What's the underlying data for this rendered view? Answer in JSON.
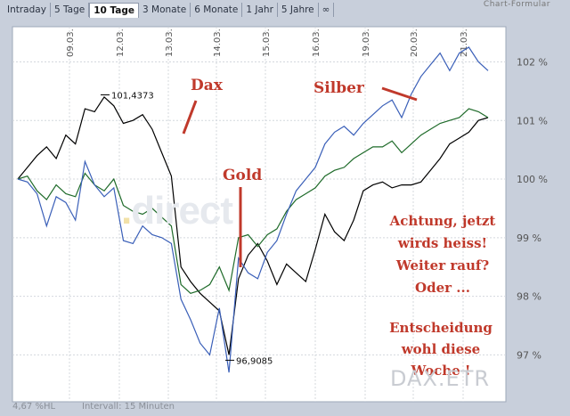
{
  "tabs": [
    {
      "label": "Intraday",
      "active": false
    },
    {
      "label": "5 Tage",
      "active": false
    },
    {
      "label": "10 Tage",
      "active": true
    },
    {
      "label": "3 Monate",
      "active": false
    },
    {
      "label": "6 Monate",
      "active": false
    },
    {
      "label": "1 Jahr",
      "active": false
    },
    {
      "label": "5 Jahre",
      "active": false
    },
    {
      "label": "∞",
      "active": false
    }
  ],
  "top_right_text": "Chart-Formular",
  "status": {
    "left": "4,67 %HL",
    "interval": "Intervall: 15 Minuten"
  },
  "watermarks": {
    "source": "DAX.ETR",
    "logo_prefix": ".",
    "logo_word": "direct"
  },
  "colors": {
    "dax": "#000000",
    "gold": "#1f6b2a",
    "silber": "#3a5fb8",
    "annotation": "#c0392b"
  },
  "annotations": {
    "dax": "Dax",
    "gold": "Gold",
    "silber": "Silber",
    "note1": [
      "Achtung, jetzt",
      "wirds heiss!",
      "Weiter rauf?",
      "Oder ..."
    ],
    "note2": [
      "Entscheidung",
      "wohl diese",
      "Woche !"
    ]
  },
  "chart_data": {
    "type": "line",
    "x_labels": [
      "09.03.",
      "12.03.",
      "13.03.",
      "14.03.",
      "15.03.",
      "16.03.",
      "19.03.",
      "20.03.",
      "21.03."
    ],
    "ylim": [
      96.2,
      102.6
    ],
    "y_ticks": [
      97,
      98,
      99,
      100,
      101,
      102
    ],
    "y_tick_labels": [
      "97 %",
      "98 %",
      "99 %",
      "100 %",
      "101 %",
      "102 %"
    ],
    "grid": true,
    "data_labels": [
      {
        "text": "101,4373",
        "value": 101.4373,
        "series": "Dax"
      },
      {
        "text": "96,9085",
        "value": 96.9085,
        "series": "Dax"
      }
    ],
    "series": [
      {
        "name": "Dax",
        "color": "#000000",
        "values": [
          100,
          100.2,
          100.4,
          100.55,
          100.35,
          100.75,
          100.6,
          101.2,
          101.15,
          101.4,
          101.25,
          100.95,
          101,
          101.1,
          100.85,
          100.45,
          100.05,
          98.5,
          98.25,
          98.05,
          97.9,
          97.75,
          97.0,
          98.3,
          98.7,
          98.9,
          98.6,
          98.2,
          98.55,
          98.4,
          98.25,
          98.8,
          99.4,
          99.1,
          98.95,
          99.3,
          99.8,
          99.9,
          99.95,
          99.85,
          99.9,
          99.9,
          99.95,
          100.15,
          100.35,
          100.6,
          100.7,
          100.8,
          101.0,
          101.05
        ]
      },
      {
        "name": "Gold",
        "color": "#1f6b2a",
        "values": [
          100,
          100.05,
          99.8,
          99.65,
          99.9,
          99.75,
          99.7,
          100.1,
          99.9,
          99.8,
          100.0,
          99.55,
          99.45,
          99.4,
          99.5,
          99.35,
          99.2,
          98.2,
          98.05,
          98.1,
          98.2,
          98.5,
          98.1,
          99.0,
          99.05,
          98.85,
          99.05,
          99.15,
          99.45,
          99.65,
          99.75,
          99.85,
          100.05,
          100.15,
          100.2,
          100.35,
          100.45,
          100.55,
          100.55,
          100.65,
          100.45,
          100.6,
          100.75,
          100.85,
          100.95,
          101.0,
          101.05,
          101.2,
          101.15,
          101.05
        ]
      },
      {
        "name": "Silber",
        "color": "#3a5fb8",
        "values": [
          100,
          99.95,
          99.75,
          99.2,
          99.7,
          99.6,
          99.3,
          100.3,
          99.9,
          99.7,
          99.85,
          98.95,
          98.9,
          99.2,
          99.05,
          99.0,
          98.9,
          97.95,
          97.6,
          97.2,
          97.0,
          97.8,
          96.7,
          98.65,
          98.4,
          98.3,
          98.75,
          98.95,
          99.4,
          99.8,
          100.0,
          100.2,
          100.6,
          100.8,
          100.9,
          100.75,
          100.95,
          101.1,
          101.25,
          101.35,
          101.05,
          101.45,
          101.75,
          101.95,
          102.15,
          101.85,
          102.15,
          102.25,
          102.0,
          101.85
        ]
      }
    ]
  }
}
